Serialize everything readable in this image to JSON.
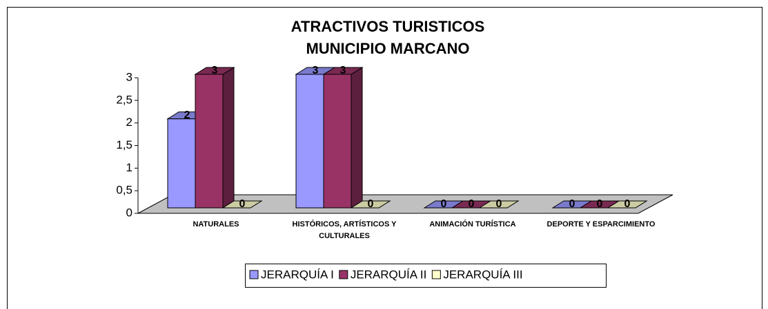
{
  "chart_data": {
    "type": "bar3d",
    "title": [
      "ATRACTIVOS TURISTICOS",
      "MUNICIPIO MARCANO"
    ],
    "categories": [
      "NATURALES",
      "HISTÓRICOS, ARTÍSTICOS Y CULTURALES",
      "ANIMACIÓN TURÍSTICA",
      "DEPORTE Y ESPARCIMIENTO"
    ],
    "series": [
      {
        "name": "JERARQUÍA I",
        "color": "#9999ff",
        "values": [
          2,
          3,
          0,
          0
        ]
      },
      {
        "name": "JERARQUÍA II",
        "color": "#993366",
        "values": [
          3,
          3,
          0,
          0
        ]
      },
      {
        "name": "JERARQUÍA III",
        "color": "#ffffcc",
        "values": [
          0,
          0,
          0,
          0
        ]
      }
    ],
    "ylim": [
      0,
      3
    ],
    "yticks": [
      0,
      {
        "value": 0.5,
        "label": "0,5"
      },
      1,
      {
        "value": 1.5,
        "label": "1,5"
      },
      2,
      {
        "value": 2.5,
        "label": "2,5"
      },
      3
    ],
    "legend": "bottom"
  }
}
